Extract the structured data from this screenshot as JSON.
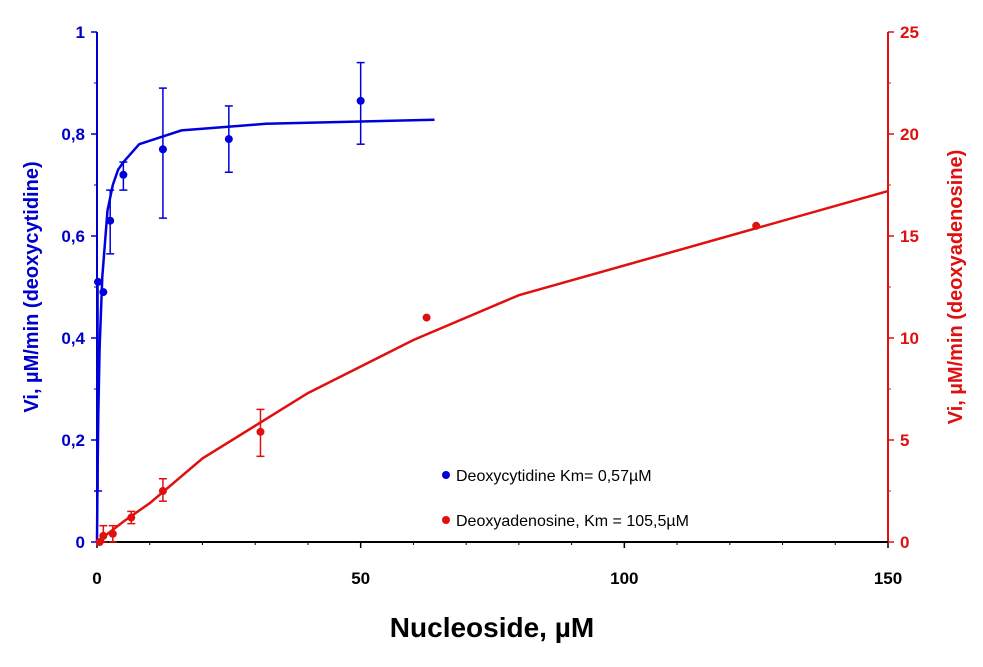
{
  "chart_data": {
    "type": "scatter",
    "xlabel": "Nucleoside, µM",
    "ylabel_left": "Vi, µM/min (deoxycytidine)",
    "ylabel_right": "Vi, µM/min (deoxyadenosine)",
    "xlim": [
      0,
      150
    ],
    "ylim_left": [
      0,
      1
    ],
    "ylim_right": [
      0,
      25
    ],
    "x_ticks": [
      {
        "value": 0,
        "label": "0"
      },
      {
        "value": 50,
        "label": "50"
      },
      {
        "value": 100,
        "label": "100"
      },
      {
        "value": 150,
        "label": "150"
      }
    ],
    "y_left_ticks": [
      {
        "value": 0,
        "label": "0"
      },
      {
        "value": 0.2,
        "label": "0,2"
      },
      {
        "value": 0.4,
        "label": "0,4"
      },
      {
        "value": 0.6,
        "label": "0,6"
      },
      {
        "value": 0.8,
        "label": "0,8"
      },
      {
        "value": 1,
        "label": "1"
      }
    ],
    "y_right_ticks": [
      {
        "value": 0,
        "label": "0"
      },
      {
        "value": 5,
        "label": "5"
      },
      {
        "value": 10,
        "label": "10"
      },
      {
        "value": 15,
        "label": "15"
      },
      {
        "value": 20,
        "label": "20"
      },
      {
        "value": 25,
        "label": "25"
      }
    ],
    "grid": false,
    "legend_position": "bottom-center",
    "series": [
      {
        "name": "Deoxycytidine Km= 0,57µM",
        "axis": "left",
        "color": "#0000dd",
        "points": [
          {
            "x": 0.2,
            "y": 0.51,
            "err_low": 0.1,
            "err_high": 0.51
          },
          {
            "x": 1.2,
            "y": 0.49,
            "err_low": 0.49,
            "err_high": 0.49
          },
          {
            "x": 2.5,
            "y": 0.63,
            "err_low": 0.565,
            "err_high": 0.69
          },
          {
            "x": 5,
            "y": 0.72,
            "err_low": 0.69,
            "err_high": 0.745
          },
          {
            "x": 12.5,
            "y": 0.77,
            "err_low": 0.635,
            "err_high": 0.89
          },
          {
            "x": 25,
            "y": 0.79,
            "err_low": 0.725,
            "err_high": 0.855
          },
          {
            "x": 50,
            "y": 0.865,
            "err_low": 0.78,
            "err_high": 0.94
          }
        ],
        "fit": [
          [
            0,
            0
          ],
          [
            0.1,
            0.12
          ],
          [
            0.25,
            0.25
          ],
          [
            0.5,
            0.38
          ],
          [
            1,
            0.52
          ],
          [
            2,
            0.65
          ],
          [
            3,
            0.7
          ],
          [
            4,
            0.73
          ],
          [
            5,
            0.745
          ],
          [
            8,
            0.78
          ],
          [
            16,
            0.807
          ],
          [
            32,
            0.82
          ],
          [
            64,
            0.828
          ]
        ]
      },
      {
        "name": "Deoxyadenosine, Km = 105,5µM",
        "axis": "right",
        "color": "#e01010",
        "points": [
          {
            "x": 0.5,
            "y": 0,
            "err_low": 0,
            "err_high": 0
          },
          {
            "x": 1.2,
            "y": 0.3,
            "err_low": 0,
            "err_high": 0.8
          },
          {
            "x": 3,
            "y": 0.4,
            "err_low": 0,
            "err_high": 0.8
          },
          {
            "x": 6.5,
            "y": 1.2,
            "err_low": 0.9,
            "err_high": 1.5
          },
          {
            "x": 12.5,
            "y": 2.5,
            "err_low": 2.0,
            "err_high": 3.1
          },
          {
            "x": 31,
            "y": 5.4,
            "err_low": 4.2,
            "err_high": 6.5
          },
          {
            "x": 62.5,
            "y": 11.0,
            "err_low": 11.0,
            "err_high": 11.0
          },
          {
            "x": 125,
            "y": 15.5,
            "err_low": 15.5,
            "err_high": 15.5
          }
        ],
        "fit": [
          [
            0,
            0
          ],
          [
            5,
            1.0
          ],
          [
            10,
            1.9
          ],
          [
            20,
            4.1
          ],
          [
            40,
            7.3
          ],
          [
            60,
            9.9
          ],
          [
            80,
            12.1
          ],
          [
            150,
            17.2
          ]
        ]
      }
    ]
  }
}
